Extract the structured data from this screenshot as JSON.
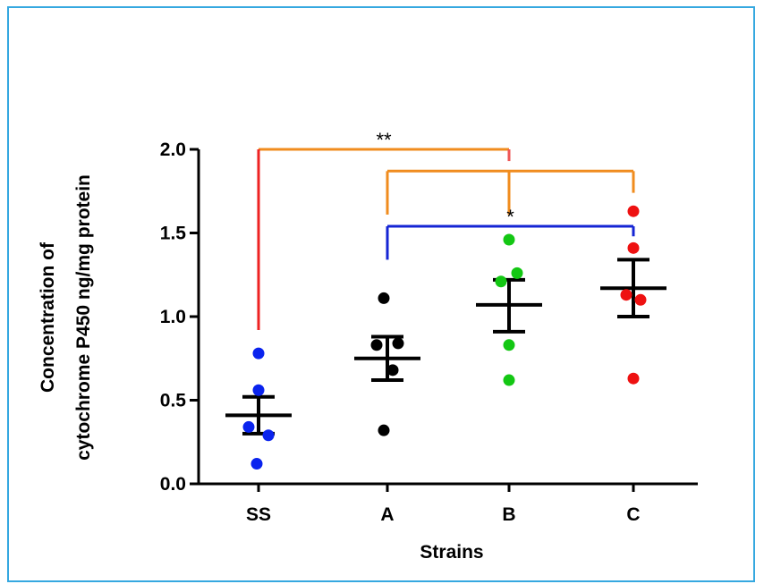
{
  "chart_data": {
    "type": "scatter",
    "categories": [
      "SS",
      "A",
      "B",
      "C"
    ],
    "xlabel": "Strains",
    "ylabel_lines": [
      "Concentration of",
      "cytochrome P450 ng/mg protein"
    ],
    "ylim": [
      0,
      2.0
    ],
    "yticks": [
      "0.0",
      "0.5",
      "1.0",
      "1.5",
      "2.0"
    ],
    "grid": false,
    "series": [
      {
        "category": "SS",
        "color": "#0a23ee",
        "points": [
          0.78,
          0.56,
          0.34,
          0.29,
          0.12
        ],
        "mean": 0.41,
        "sem_upper": 0.52,
        "sem_lower": 0.3
      },
      {
        "category": "A",
        "color": "#000000",
        "points": [
          1.11,
          0.83,
          0.84,
          0.68,
          0.32
        ],
        "mean": 0.75,
        "sem_upper": 0.88,
        "sem_lower": 0.62
      },
      {
        "category": "B",
        "color": "#13c713",
        "points": [
          1.46,
          1.26,
          1.21,
          0.83,
          0.62
        ],
        "mean": 1.07,
        "sem_upper": 1.22,
        "sem_lower": 0.91
      },
      {
        "category": "C",
        "color": "#ee1111",
        "points": [
          1.63,
          1.41,
          1.13,
          1.1,
          0.63
        ],
        "mean": 1.17,
        "sem_upper": 1.34,
        "sem_lower": 1.0
      }
    ],
    "significance": [
      {
        "from": "SS",
        "to": "B",
        "label": "**",
        "color": "#f08c1e",
        "y": 2.0,
        "from_drop_to": 0.92,
        "from_drop_color": "#ee2222",
        "to_drop_to": 1.93,
        "to_drop_color": "#ee5555"
      },
      {
        "from": "A",
        "to": "C",
        "label": "",
        "color": "#f08c1e",
        "y": 1.87,
        "from_drop_to": 1.61,
        "to_drop_to": 1.74,
        "mid_drop_x": "B",
        "mid_drop_to": 1.61
      },
      {
        "from": "A",
        "to": "C",
        "label": "*",
        "color": "#1525d4",
        "y": 1.54,
        "from_drop_to": 1.34,
        "to_drop_to": 1.48
      }
    ]
  }
}
